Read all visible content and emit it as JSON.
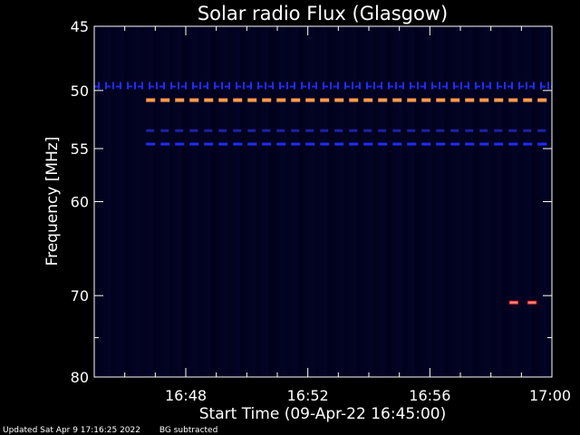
{
  "chart_data": {
    "type": "heatmap",
    "title": "Solar radio Flux (Glasgow)",
    "xlabel": "Start Time (09-Apr-22 16:45:00)",
    "ylabel": "Frequency [MHz]",
    "xlim_minutes": [
      45,
      60
    ],
    "ylim": [
      45,
      80
    ],
    "y_scale": "log",
    "x_ticks": [
      {
        "minute": 48,
        "label": "16:48"
      },
      {
        "minute": 52,
        "label": "16:52"
      },
      {
        "minute": 56,
        "label": "16:56"
      },
      {
        "minute": 60,
        "label": "17:00"
      }
    ],
    "y_ticks": [
      {
        "value": 45,
        "label": "45"
      },
      {
        "value": 50,
        "label": "50"
      },
      {
        "value": 55,
        "label": "55"
      },
      {
        "value": 60,
        "label": "60"
      },
      {
        "value": 70,
        "label": "70"
      },
      {
        "value": 80,
        "label": "80"
      }
    ],
    "background_color": "#00001a",
    "features": [
      {
        "type": "dashed-band",
        "freq_mhz": 49.6,
        "start_min": 45.0,
        "end_min": 60.0,
        "color": "#1f2cff",
        "style": "ticks"
      },
      {
        "type": "dashed-band",
        "freq_mhz": 50.8,
        "start_min": 46.7,
        "end_min": 60.0,
        "color": "#ff9a4a",
        "style": "dashes"
      },
      {
        "type": "dashed-band",
        "freq_mhz": 53.4,
        "start_min": 46.7,
        "end_min": 60.0,
        "color": "#2020a8",
        "style": "dashes"
      },
      {
        "type": "dashed-band",
        "freq_mhz": 54.6,
        "start_min": 46.7,
        "end_min": 60.0,
        "color": "#1f2cff",
        "style": "dashes"
      },
      {
        "type": "burst",
        "freq_mhz": 70.8,
        "start_min": 58.6,
        "end_min": 58.9,
        "color": "#ff3030"
      },
      {
        "type": "burst",
        "freq_mhz": 70.8,
        "start_min": 59.2,
        "end_min": 59.5,
        "color": "#ff3030"
      }
    ],
    "grid": false,
    "legend": "none"
  },
  "footer": {
    "updated": "Updated Sat Apr  9 17:16:25 2022",
    "note": "BG subtracted"
  }
}
